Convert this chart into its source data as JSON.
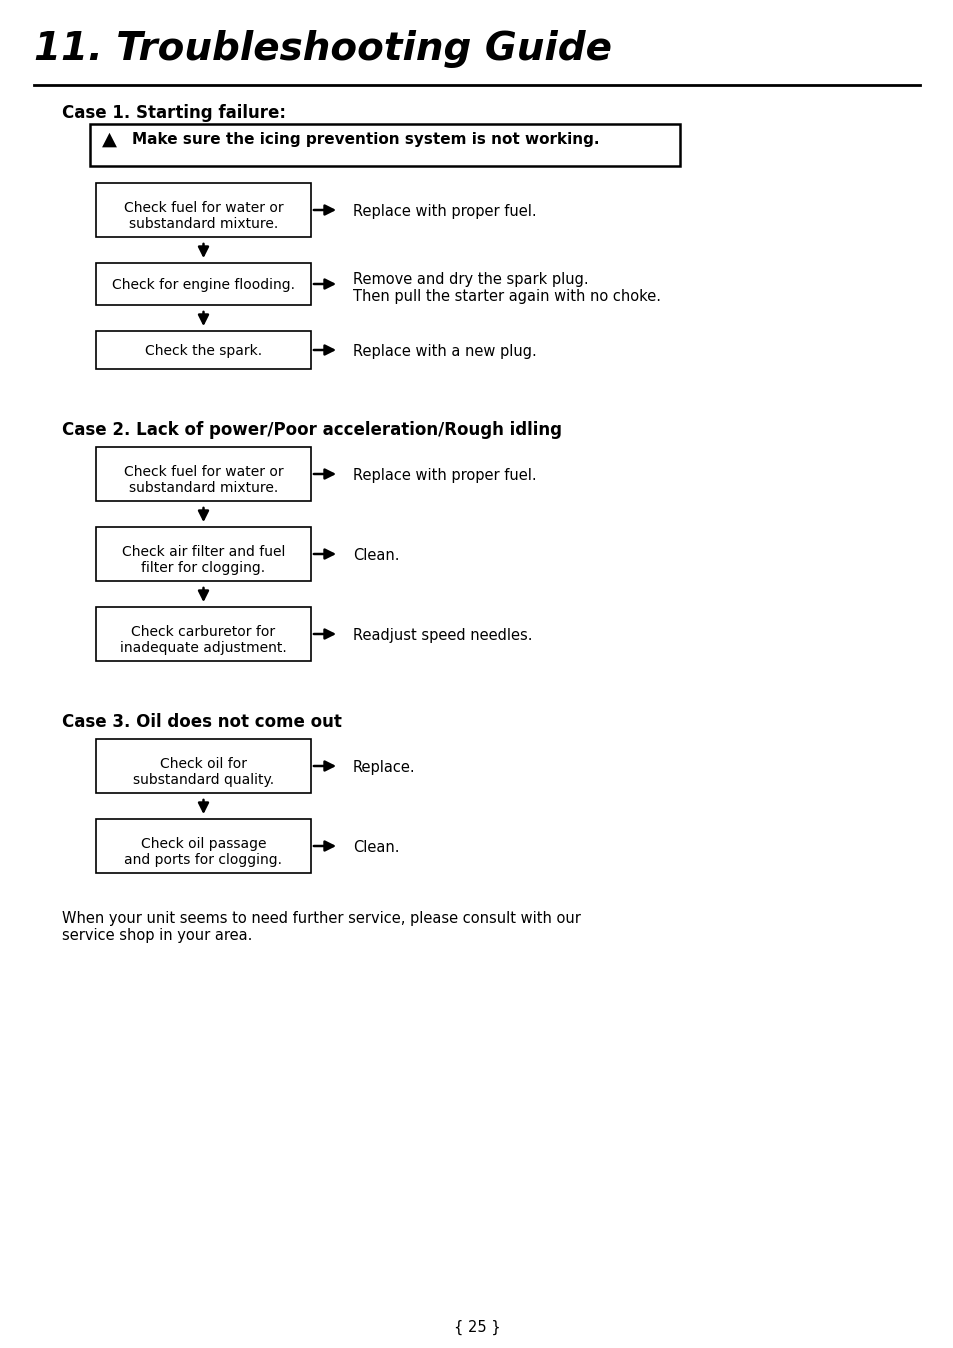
{
  "title": "11. Troubleshooting Guide",
  "page_number": "{ 25 }",
  "background_color": "#ffffff",
  "text_color": "#000000",
  "case1_heading": "Case 1. Starting failure:",
  "case1_warning": "Make sure the icing prevention system is not working.",
  "case1_boxes": [
    {
      "text": "Check fuel for water or\nsubstandard mixture.",
      "action": "Replace with proper fuel."
    },
    {
      "text": "Check for engine flooding.",
      "action": "Remove and dry the spark plug.\nThen pull the starter again with no choke."
    },
    {
      "text": "Check the spark.",
      "action": "Replace with a new plug."
    }
  ],
  "case2_heading": "Case 2. Lack of power/Poor acceleration/Rough idling",
  "case2_boxes": [
    {
      "text": "Check fuel for water or\nsubstandard mixture.",
      "action": "Replace with proper fuel."
    },
    {
      "text": "Check air filter and fuel\nfilter for clogging.",
      "action": "Clean."
    },
    {
      "text": "Check carburetor for\ninadequate adjustment.",
      "action": "Readjust speed needles."
    }
  ],
  "case3_heading": "Case 3. Oil does not come out",
  "case3_boxes": [
    {
      "text": "Check oil for\nsubstandard quality.",
      "action": "Replace."
    },
    {
      "text": "Check oil passage\nand ports for clogging.",
      "action": "Clean."
    }
  ],
  "footer_text": "When your unit seems to need further service, please consult with our\nservice shop in your area."
}
